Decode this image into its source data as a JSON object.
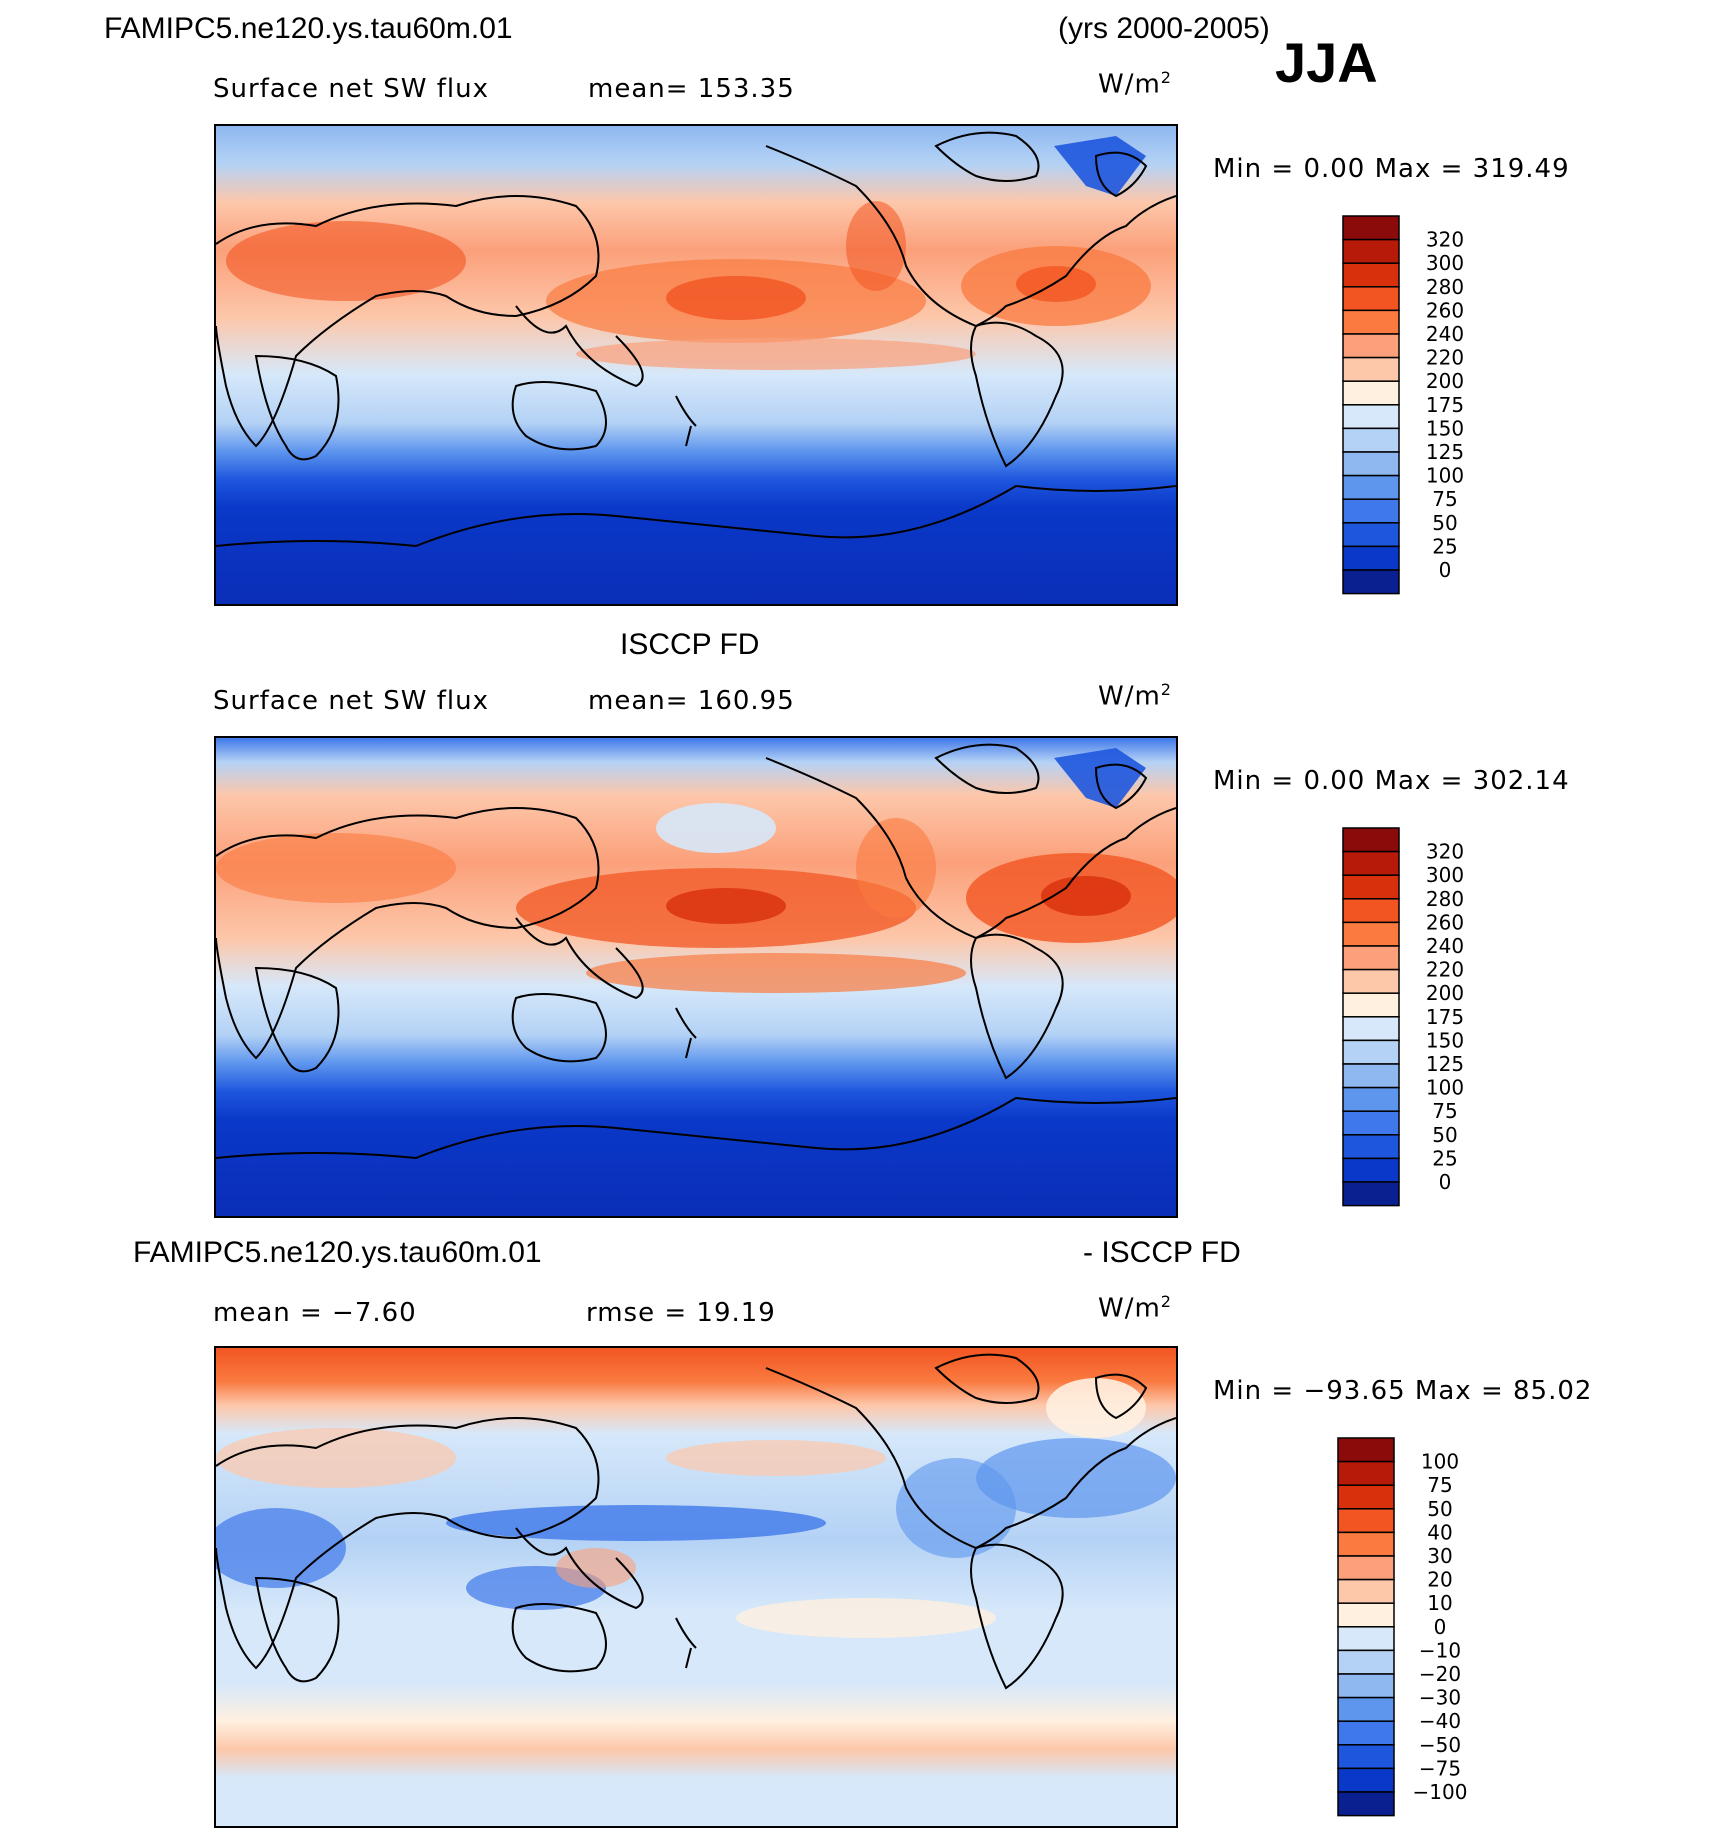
{
  "header": {
    "case_name": "FAMIPC5.ne120.ys.tau60m.01",
    "years": "(yrs 2000-2005)",
    "season": "JJA"
  },
  "panels": [
    {
      "id": "model",
      "title": "",
      "field_label": "Surface net SW flux",
      "stat_text": "mean=  153.35",
      "units": "W/m",
      "units_exp": "2",
      "range_text": "Min  =     0.00  Max  =  319.49",
      "colorbar": {
        "labels": [
          "320",
          "300",
          "280",
          "260",
          "240",
          "220",
          "200",
          "175",
          "150",
          "125",
          "100",
          "75",
          "50",
          "25",
          "0"
        ],
        "colors": [
          "#8B0A0A",
          "#B81A0A",
          "#D8300C",
          "#F25522",
          "#FA7A40",
          "#FBA07A",
          "#FDC7AA",
          "#FFF0E0",
          "#D6E8FA",
          "#B4D2F5",
          "#8FB8F0",
          "#5E96EE",
          "#3F78EA",
          "#1E56DE",
          "#0A38C8",
          "#0A1F90"
        ]
      }
    },
    {
      "id": "obs",
      "title": "ISCCP FD",
      "field_label": "Surface net SW flux",
      "stat_text": "mean=  160.95",
      "units": "W/m",
      "units_exp": "2",
      "range_text": "Min  =     0.00  Max  =  302.14",
      "colorbar": {
        "labels": [
          "320",
          "300",
          "280",
          "260",
          "240",
          "220",
          "200",
          "175",
          "150",
          "125",
          "100",
          "75",
          "50",
          "25",
          "0"
        ],
        "colors": [
          "#8B0A0A",
          "#B81A0A",
          "#D8300C",
          "#F25522",
          "#FA7A40",
          "#FBA07A",
          "#FDC7AA",
          "#FFF0E0",
          "#D6E8FA",
          "#B4D2F5",
          "#8FB8F0",
          "#5E96EE",
          "#3F78EA",
          "#1E56DE",
          "#0A38C8",
          "#0A1F90"
        ]
      }
    },
    {
      "id": "diff",
      "title_left": "FAMIPC5.ne120.ys.tau60m.01",
      "title_right": "- ISCCP FD",
      "field_label": "mean  =   −7.60",
      "stat_text": "rmse  =    19.19",
      "units": "W/m",
      "units_exp": "2",
      "range_text": "Min  = −93.65  Max  =    85.02",
      "colorbar": {
        "labels": [
          "100",
          "75",
          "50",
          "40",
          "30",
          "20",
          "10",
          "0",
          "−10",
          "−20",
          "−30",
          "−40",
          "−50",
          "−75",
          "−100"
        ],
        "colors": [
          "#8B0A0A",
          "#B81A0A",
          "#D8300C",
          "#F25522",
          "#FA7A40",
          "#FBA07A",
          "#FDC7AA",
          "#FFF0E0",
          "#D6E8FA",
          "#B4D2F5",
          "#8FB8F0",
          "#5E96EE",
          "#3F78EA",
          "#1E56DE",
          "#0A38C8",
          "#0A1F90"
        ]
      }
    }
  ]
}
